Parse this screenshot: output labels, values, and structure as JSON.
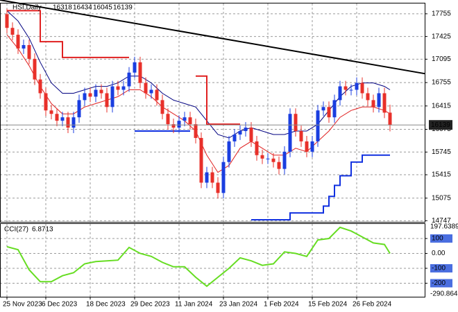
{
  "chart_data": [
    {
      "type": "candlestick",
      "title": "HSI,Daily",
      "categories": [
        "25 Nov 2023",
        null,
        null,
        null,
        null,
        null,
        null,
        "6 Dec 2023",
        null,
        null,
        null,
        null,
        null,
        null,
        null,
        "18 Dec 2023",
        null,
        null,
        null,
        null,
        null,
        null,
        null,
        "29 Dec 2023",
        null,
        null,
        null,
        null,
        null,
        null,
        null,
        "11 Jan 2024",
        null,
        null,
        null,
        null,
        null,
        null,
        null,
        "23 Jan 2024",
        null,
        null,
        null,
        null,
        null,
        null,
        null,
        "1 Feb 2024",
        null,
        null,
        null,
        null,
        null,
        null,
        null,
        "15 Feb 2024",
        null,
        null,
        null,
        null,
        null,
        null,
        null,
        "26 Feb 2024",
        null,
        null,
        null,
        null,
        null,
        null
      ],
      "open": [
        17750,
        17550,
        17450,
        17250,
        17300,
        17100,
        16800,
        16600,
        16350,
        16300,
        16200,
        16250,
        16100,
        16250,
        16500,
        16600,
        16550,
        16650,
        16600,
        16400,
        16700,
        16650,
        16700,
        16900,
        17050,
        16750,
        16600,
        16650,
        16500,
        16300,
        16150,
        16100,
        16200,
        16250,
        16150,
        15950,
        15300,
        15450,
        15300,
        15150,
        15600,
        15900,
        16000,
        16050,
        16100,
        15900,
        15700,
        15650,
        15650,
        15600,
        15500,
        15750,
        16300,
        16050,
        15900,
        15750,
        15900,
        16350,
        16400,
        16250,
        16500,
        16700,
        16650,
        16650,
        16750,
        16600,
        16500,
        16400,
        16600,
        16318
      ],
      "high": [
        17830,
        17630,
        17530,
        17380,
        17380,
        17180,
        16880,
        16680,
        16430,
        16380,
        16330,
        16330,
        16330,
        16580,
        16680,
        16680,
        16730,
        16730,
        16680,
        16780,
        16780,
        16780,
        16980,
        17130,
        17130,
        16830,
        16730,
        16730,
        16580,
        16380,
        16230,
        16280,
        16330,
        16330,
        16230,
        16030,
        15530,
        15530,
        15380,
        15680,
        15980,
        16080,
        16130,
        16180,
        16180,
        15980,
        15780,
        15730,
        15730,
        15680,
        15830,
        16380,
        16380,
        16130,
        15980,
        15980,
        16430,
        16480,
        16480,
        16580,
        16780,
        16780,
        16730,
        16830,
        16830,
        16680,
        16580,
        16680,
        16680,
        16434
      ],
      "low": [
        17470,
        17370,
        17170,
        17170,
        17020,
        16720,
        16520,
        16270,
        16220,
        16120,
        16120,
        16020,
        16020,
        16170,
        16420,
        16470,
        16470,
        16520,
        16320,
        16320,
        16570,
        16570,
        16620,
        16820,
        16670,
        16520,
        16520,
        16420,
        16220,
        16070,
        16020,
        16020,
        16120,
        16070,
        15870,
        15220,
        15220,
        15220,
        15070,
        15070,
        15520,
        15820,
        15920,
        15970,
        15820,
        15620,
        15570,
        15570,
        15520,
        15420,
        15420,
        15670,
        15970,
        15820,
        15670,
        15670,
        15820,
        16270,
        16170,
        16170,
        16420,
        16570,
        16570,
        16570,
        16520,
        16420,
        16320,
        16320,
        16238,
        16045
      ],
      "close": [
        17550,
        17450,
        17250,
        17300,
        17100,
        16800,
        16600,
        16350,
        16300,
        16200,
        16250,
        16100,
        16250,
        16500,
        16600,
        16550,
        16650,
        16600,
        16400,
        16700,
        16650,
        16700,
        16900,
        17050,
        16750,
        16600,
        16650,
        16500,
        16300,
        16150,
        16100,
        16200,
        16250,
        16150,
        15950,
        15300,
        15450,
        15300,
        15150,
        15600,
        15900,
        16000,
        16050,
        16100,
        15900,
        15700,
        15650,
        15650,
        15600,
        15500,
        15750,
        16300,
        16050,
        15900,
        15750,
        15900,
        16350,
        16400,
        16250,
        16500,
        16700,
        16650,
        16650,
        16750,
        16600,
        16500,
        16400,
        16600,
        16318,
        16139
      ],
      "up_color": "#1a3ee0",
      "down_color": "#e8302a",
      "xlim": [
        -1.25,
        75.25
      ],
      "ylim": [
        14730,
        17905
      ],
      "yticks": [
        17755,
        17425,
        17095,
        16755,
        16415,
        16075,
        15745,
        15415,
        15075,
        14747
      ],
      "grid": true,
      "series": [
        {
          "color": "#e02020",
          "style": "line",
          "x": [
            0,
            2,
            4,
            6,
            8,
            10,
            12,
            14,
            16,
            18,
            20,
            22,
            24,
            26,
            28,
            30,
            32,
            34,
            36,
            38,
            40,
            42,
            44,
            46,
            48,
            50,
            52,
            54,
            56,
            58,
            60,
            62,
            64,
            66,
            68,
            69
          ],
          "values": [
            17450,
            17250,
            17000,
            16700,
            16450,
            16300,
            16300,
            16400,
            16450,
            16500,
            16550,
            16650,
            16650,
            16550,
            16400,
            16300,
            16200,
            16050,
            15700,
            15450,
            15550,
            15800,
            15900,
            15800,
            15700,
            15700,
            15800,
            15750,
            15900,
            16050,
            16250,
            16350,
            16400,
            16400,
            16350,
            16300
          ]
        },
        {
          "color": "#000080",
          "style": "line",
          "x": [
            0,
            2,
            4,
            6,
            8,
            10,
            12,
            14,
            16,
            18,
            20,
            22,
            24,
            26,
            28,
            30,
            32,
            34,
            36,
            38,
            40,
            42,
            44,
            46,
            48,
            50,
            52,
            54,
            56,
            58,
            60,
            62,
            64,
            66,
            68,
            69
          ],
          "values": [
            17800,
            17650,
            17400,
            17050,
            16750,
            16600,
            16600,
            16650,
            16700,
            16700,
            16750,
            16850,
            16850,
            16750,
            16600,
            16500,
            16450,
            16400,
            16200,
            16000,
            15950,
            16050,
            16100,
            16050,
            16000,
            16000,
            16050,
            16050,
            16150,
            16350,
            16550,
            16700,
            16750,
            16750,
            16700,
            16650
          ]
        },
        {
          "color": "#e02020",
          "style": "step",
          "x": [
            0,
            6,
            10,
            22,
            23,
            34,
            36,
            42
          ],
          "values": [
            17800,
            17350,
            17120,
            17120,
            null,
            16850,
            16150,
            16150
          ]
        },
        {
          "color": "#1030e0",
          "style": "step",
          "x": [
            23,
            33,
            34,
            44,
            51,
            57,
            58,
            59,
            60,
            62,
            64,
            69
          ],
          "values": [
            16050,
            16050,
            null,
            14760,
            14860,
            14960,
            15100,
            15260,
            15400,
            15600,
            15700,
            15700
          ]
        },
        {
          "color": "#000000",
          "style": "line",
          "x": [
            -1.25,
            75.25
          ],
          "values": [
            17955,
            16885
          ]
        }
      ]
    },
    {
      "type": "line",
      "title": "CCI(27)",
      "current": 6.8713,
      "color": "#66dd22",
      "x": [
        0,
        2,
        4,
        6,
        8,
        10,
        12,
        14,
        16,
        18,
        20,
        22,
        24,
        26,
        28,
        30,
        32,
        34,
        36,
        38,
        40,
        42,
        44,
        46,
        48,
        50,
        52,
        54,
        56,
        58,
        60,
        62,
        64,
        66,
        68,
        69
      ],
      "values": [
        45,
        25,
        -110,
        -190,
        -190,
        -150,
        -130,
        -70,
        -55,
        -50,
        -45,
        40,
        0,
        -20,
        -60,
        -90,
        -90,
        -160,
        -220,
        -160,
        -100,
        -30,
        -50,
        -80,
        -70,
        10,
        0,
        -20,
        90,
        100,
        175,
        150,
        110,
        70,
        60,
        0
      ],
      "xlim": [
        -1.25,
        75.25
      ],
      "ylim": [
        -290.864,
        197.6389
      ],
      "yticks": [
        100,
        {
          "value": 0,
          "label": "0.00"
        },
        -100,
        -200
      ],
      "grid": true
    }
  ]
}
